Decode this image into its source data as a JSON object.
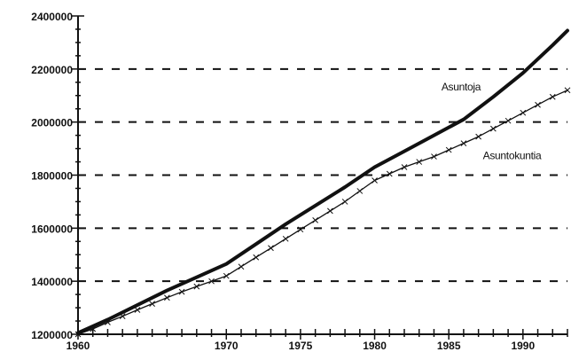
{
  "chart_data": {
    "type": "line",
    "title": "",
    "xlabel": "",
    "ylabel": "",
    "xlim": [
      1960,
      1993
    ],
    "ylim": [
      1200000,
      2400000
    ],
    "grid": "horizontal-dashed",
    "x_ticks": [
      1960,
      1970,
      1975,
      1980,
      1985,
      1990
    ],
    "x_minor_step": 1,
    "y_ticks": [
      1200000,
      1400000,
      1600000,
      1800000,
      2000000,
      2200000,
      2400000
    ],
    "y_minor_step": 50000,
    "y_tick_labels": [
      "1200000",
      "1400000",
      "1600000",
      "1800000",
      "2000000",
      "2200000",
      "2400000"
    ],
    "x_tick_labels": [
      "1960",
      "1970",
      "1975",
      "1980",
      "1985",
      "1990"
    ],
    "series": [
      {
        "name": "Asuntoja",
        "style": "thick-line",
        "color": "#111111",
        "x": [
          1960,
          1962,
          1964,
          1966,
          1968,
          1970,
          1972,
          1974,
          1976,
          1978,
          1980,
          1982,
          1984,
          1986,
          1988,
          1990,
          1992,
          1993
        ],
        "values": [
          1205000,
          1255000,
          1310000,
          1365000,
          1415000,
          1465000,
          1540000,
          1615000,
          1685000,
          1755000,
          1830000,
          1890000,
          1950000,
          2010000,
          2095000,
          2185000,
          2290000,
          2345000
        ]
      },
      {
        "name": "Asuntokuntia",
        "style": "line-with-x-markers",
        "color": "#111111",
        "x": [
          1960,
          1961,
          1962,
          1963,
          1964,
          1965,
          1966,
          1967,
          1968,
          1969,
          1970,
          1971,
          1972,
          1973,
          1974,
          1975,
          1976,
          1977,
          1978,
          1979,
          1980,
          1981,
          1982,
          1983,
          1984,
          1985,
          1986,
          1987,
          1988,
          1989,
          1990,
          1991,
          1992,
          1993
        ],
        "values": [
          1200000,
          1220000,
          1245000,
          1268000,
          1292000,
          1315000,
          1338000,
          1360000,
          1380000,
          1400000,
          1420000,
          1455000,
          1490000,
          1525000,
          1560000,
          1595000,
          1630000,
          1665000,
          1700000,
          1740000,
          1780000,
          1805000,
          1830000,
          1850000,
          1870000,
          1895000,
          1920000,
          1945000,
          1975000,
          2005000,
          2035000,
          2065000,
          2095000,
          2120000
        ]
      }
    ],
    "annotations": [
      {
        "text": "Asuntoja",
        "x": 1984.5,
        "y": 2120000
      },
      {
        "text": "Asuntokuntia",
        "x": 1987.3,
        "y": 1860000
      }
    ]
  }
}
